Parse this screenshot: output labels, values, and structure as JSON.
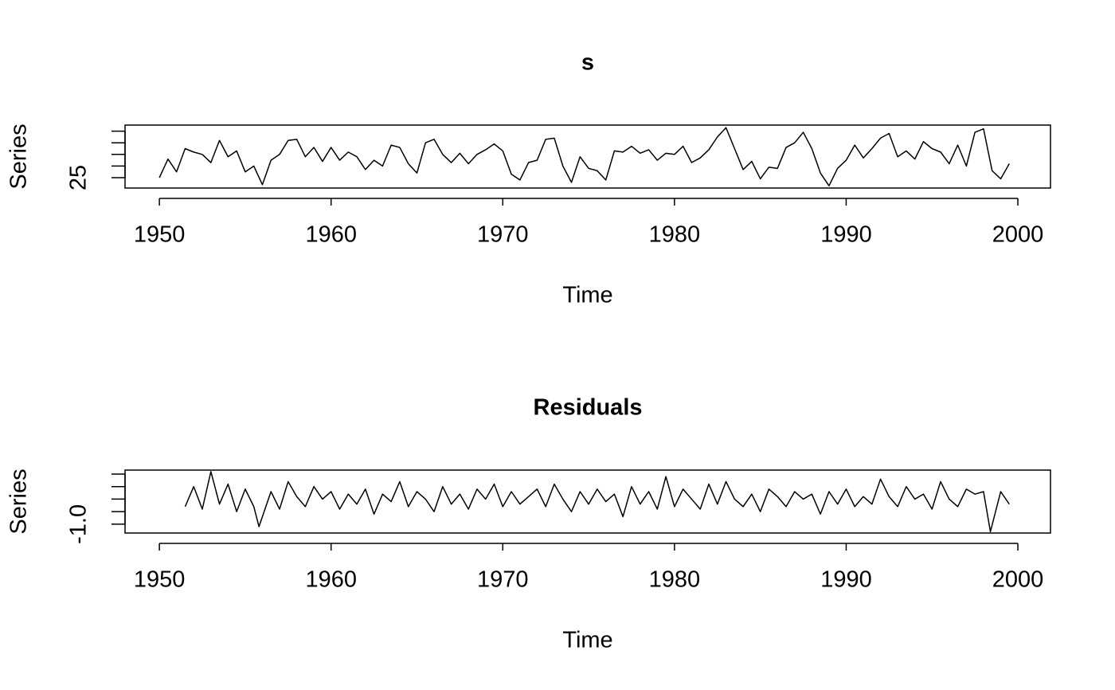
{
  "chart_data": [
    {
      "type": "line",
      "title": "s",
      "x_label": "Time",
      "y_label": "Series",
      "color": "#000000",
      "grid": false,
      "xlim": [
        1948.0,
        2001.9
      ],
      "xticks": [
        1950,
        1960,
        1970,
        1980,
        1990,
        2000
      ],
      "ylim": [
        24.11,
        29.52
      ],
      "yticks": [
        25,
        {
          "value": 26,
          "label": null
        },
        {
          "value": 27,
          "label": null
        },
        {
          "value": 28,
          "label": null
        },
        {
          "value": 29,
          "label": null
        }
      ],
      "x": [
        1950,
        1950.5,
        1951,
        1951.5,
        1952,
        1952.5,
        1953,
        1953.5,
        1954,
        1954.5,
        1955,
        1955.5,
        1956,
        1956.5,
        1957,
        1957.5,
        1958,
        1958.5,
        1959,
        1959.5,
        1960,
        1960.5,
        1961,
        1961.5,
        1962,
        1962.5,
        1963,
        1963.5,
        1964,
        1964.5,
        1965,
        1965.5,
        1966,
        1966.5,
        1967,
        1967.5,
        1968,
        1968.5,
        1969,
        1969.5,
        1970,
        1970.5,
        1971,
        1971.5,
        1972,
        1972.5,
        1973,
        1973.5,
        1974,
        1974.5,
        1975,
        1975.5,
        1976,
        1976.5,
        1977,
        1977.5,
        1978,
        1978.5,
        1979,
        1979.5,
        1980,
        1980.5,
        1981,
        1981.5,
        1982,
        1982.5,
        1983,
        1983.5,
        1984,
        1984.5,
        1985,
        1985.5,
        1986,
        1986.5,
        1987,
        1987.5,
        1988,
        1988.5,
        1989,
        1989.5,
        1990,
        1990.5,
        1991,
        1991.5,
        1992,
        1992.5,
        1993,
        1993.5,
        1994,
        1994.5,
        1995,
        1995.5,
        1996,
        1996.5,
        1997,
        1997.5,
        1998,
        1998.5,
        1999,
        1999.5
      ],
      "values": [
        25.0,
        26.6,
        25.5,
        27.5,
        27.2,
        27.0,
        26.3,
        28.2,
        26.8,
        27.3,
        25.5,
        26.0,
        24.4,
        26.5,
        27.0,
        28.2,
        28.3,
        26.8,
        27.6,
        26.4,
        27.6,
        26.5,
        27.2,
        26.8,
        25.7,
        26.5,
        26.0,
        27.8,
        27.6,
        26.2,
        25.4,
        28.0,
        28.3,
        27.0,
        26.3,
        27.1,
        26.2,
        27.0,
        27.4,
        27.9,
        27.3,
        25.3,
        24.8,
        26.3,
        26.5,
        28.3,
        28.4,
        26.0,
        24.6,
        26.8,
        25.8,
        25.6,
        24.8,
        27.3,
        27.2,
        27.7,
        27.1,
        27.4,
        26.5,
        27.1,
        27.0,
        27.7,
        26.3,
        26.7,
        27.4,
        28.5,
        29.3,
        27.5,
        25.7,
        26.4,
        24.9,
        25.9,
        25.8,
        27.6,
        28.0,
        28.9,
        27.5,
        25.4,
        24.3,
        25.8,
        26.5,
        27.8,
        26.7,
        27.5,
        28.4,
        28.8,
        26.8,
        27.3,
        26.6,
        28.1,
        27.5,
        27.2,
        26.2,
        27.8,
        26.0,
        28.9,
        29.2,
        25.6,
        24.9,
        26.2
      ]
    },
    {
      "type": "line",
      "title": "Residuals",
      "x_label": "Time",
      "y_label": "Series",
      "color": "#000000",
      "grid": false,
      "xlim": [
        1948.0,
        2001.9
      ],
      "xticks": [
        1950,
        1960,
        1970,
        1980,
        1990,
        2000
      ],
      "ylim": [
        -1.355,
        1.16
      ],
      "yticks": [
        {
          "value": -1,
          "label": "-1.0"
        },
        {
          "value": -0.5,
          "label": null
        },
        {
          "value": 0,
          "label": null
        },
        {
          "value": 0.5,
          "label": null
        },
        {
          "value": 1,
          "label": null
        }
      ],
      "x": [
        1951.5,
        1952,
        1952.5,
        1953,
        1953.5,
        1954,
        1954.5,
        1955,
        1955.5,
        1955.8,
        1956.5,
        1957,
        1957.5,
        1958,
        1958.5,
        1959,
        1959.5,
        1960,
        1960.5,
        1961,
        1961.5,
        1962,
        1962.5,
        1963,
        1963.5,
        1964,
        1964.5,
        1965,
        1965.5,
        1966,
        1966.5,
        1967,
        1967.5,
        1968,
        1968.5,
        1969,
        1969.5,
        1970,
        1970.5,
        1971,
        1971.5,
        1972,
        1972.5,
        1973,
        1973.5,
        1974,
        1974.5,
        1975,
        1975.5,
        1976,
        1976.5,
        1977,
        1977.5,
        1978,
        1978.5,
        1979,
        1979.5,
        1980,
        1980.5,
        1981,
        1981.5,
        1982,
        1982.5,
        1983,
        1983.5,
        1984,
        1984.5,
        1985,
        1985.5,
        1986,
        1986.5,
        1987,
        1987.5,
        1988,
        1988.5,
        1989,
        1989.5,
        1990,
        1990.5,
        1991,
        1991.5,
        1992,
        1992.5,
        1993,
        1993.5,
        1994,
        1994.5,
        1995,
        1995.5,
        1996,
        1996.5,
        1997,
        1997.5,
        1998,
        1998.4,
        1999,
        1999.5
      ],
      "values": [
        -0.3,
        0.5,
        -0.4,
        1.1,
        -0.2,
        0.6,
        -0.5,
        0.4,
        -0.3,
        -1.1,
        0.3,
        -0.4,
        0.7,
        0.1,
        -0.3,
        0.5,
        0.0,
        0.3,
        -0.4,
        0.2,
        -0.2,
        0.4,
        -0.6,
        0.2,
        -0.1,
        0.7,
        -0.3,
        0.3,
        0.0,
        -0.5,
        0.5,
        -0.2,
        0.2,
        -0.4,
        0.4,
        0.0,
        0.6,
        -0.3,
        0.3,
        -0.2,
        0.1,
        0.4,
        -0.3,
        0.6,
        0.0,
        -0.5,
        0.3,
        -0.2,
        0.4,
        -0.1,
        0.2,
        -0.7,
        0.5,
        -0.2,
        0.3,
        -0.4,
        0.9,
        -0.3,
        0.4,
        0.0,
        -0.4,
        0.6,
        -0.2,
        0.7,
        0.0,
        -0.3,
        0.2,
        -0.5,
        0.4,
        0.1,
        -0.3,
        0.3,
        0.0,
        0.2,
        -0.6,
        0.3,
        -0.2,
        0.4,
        -0.3,
        0.1,
        -0.2,
        0.8,
        0.1,
        -0.3,
        0.5,
        0.0,
        0.2,
        -0.4,
        0.7,
        0.0,
        -0.3,
        0.4,
        0.2,
        0.3,
        -1.3,
        0.3,
        -0.2
      ]
    }
  ]
}
